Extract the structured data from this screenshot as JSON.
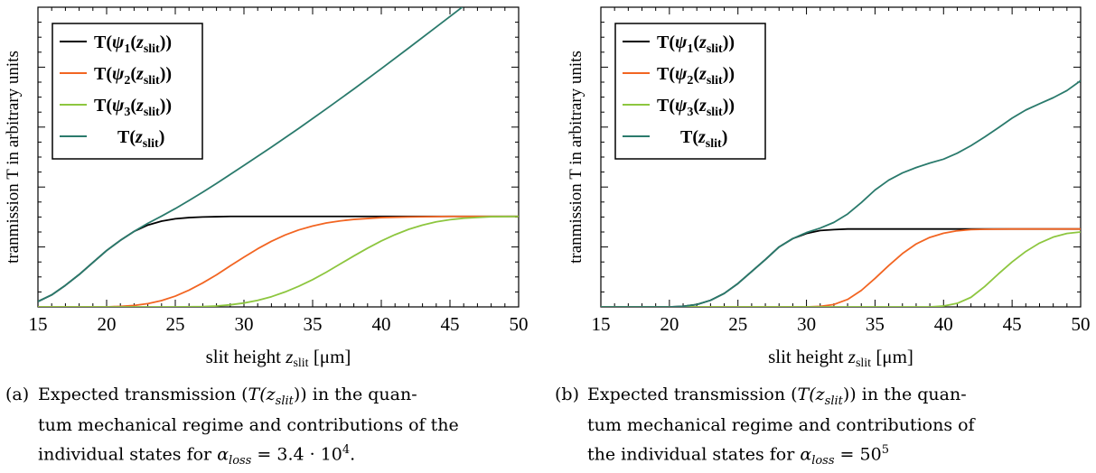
{
  "charts": [
    {
      "label": "(a)",
      "caption_lines": [
        "Expected transmission (T(z",
        "tum mechanical regime and contributions of the",
        "individual states for α"
      ],
      "caption": {
        "line1_prefix": "Expected transmission (",
        "line1_math": "T(z",
        "line1_sub": "slit",
        "line1_suffix": ")) in the quan-",
        "line2": "tum mechanical regime and contributions of the",
        "line3_prefix": "individual states for ",
        "alpha_sym": "α",
        "alpha_sub": "loss",
        "alpha_value": " = 3.4 · 10",
        "alpha_exp": "4",
        "line3_suffix": "."
      }
    },
    {
      "label": "(b)",
      "caption": {
        "line1_prefix": "Expected transmission (",
        "line1_math": "T(z",
        "line1_sub": "slit",
        "line1_suffix": ")) in the quan-",
        "line2": "tum mechanical regime and contributions of",
        "line3_prefix": "the individual states for ",
        "alpha_sym": "α",
        "alpha_sub": "loss",
        "alpha_value": " = 50",
        "alpha_exp": "5",
        "line3_suffix": ""
      }
    }
  ],
  "chart_data": [
    {
      "type": "line",
      "ylabel": "tranmission T in arbitrary units",
      "xlabel_prefix": "slit height ",
      "xlabel_var": "z",
      "xlabel_sub": "slit",
      "xlabel_suffix": " [μm]",
      "xlim": [
        15,
        50
      ],
      "ylim": [
        0,
        1
      ],
      "xticks": [
        15,
        20,
        25,
        30,
        35,
        40,
        45,
        50
      ],
      "legend_position": "top-left",
      "series": [
        {
          "name": "T(ψ1(zslit))",
          "legend_main": "T(",
          "legend_psi": "ψ",
          "legend_idx": "1",
          "legend_var": "(z",
          "legend_sub": "slit",
          "legend_close": "))",
          "color": "#000000",
          "x": [
            15,
            16,
            17,
            18,
            19,
            20,
            21,
            22,
            23,
            24,
            25,
            26,
            27,
            28,
            29,
            30,
            32,
            35,
            40,
            45,
            50
          ],
          "y": [
            0.018,
            0.04,
            0.072,
            0.108,
            0.148,
            0.188,
            0.222,
            0.252,
            0.273,
            0.286,
            0.294,
            0.298,
            0.3,
            0.301,
            0.302,
            0.302,
            0.302,
            0.302,
            0.302,
            0.302,
            0.302
          ]
        },
        {
          "name": "T(ψ2(zslit))",
          "legend_main": "T(",
          "legend_psi": "ψ",
          "legend_idx": "2",
          "legend_var": "(z",
          "legend_sub": "slit",
          "legend_close": "))",
          "color": "#f26522",
          "x": [
            15,
            20,
            21,
            22,
            23,
            24,
            25,
            26,
            27,
            28,
            29,
            30,
            31,
            32,
            33,
            34,
            35,
            36,
            37,
            38,
            40,
            42,
            45,
            50
          ],
          "y": [
            0.0,
            0.0,
            0.002,
            0.005,
            0.011,
            0.021,
            0.036,
            0.056,
            0.08,
            0.107,
            0.137,
            0.166,
            0.194,
            0.219,
            0.24,
            0.257,
            0.27,
            0.28,
            0.287,
            0.292,
            0.298,
            0.3,
            0.302,
            0.302
          ]
        },
        {
          "name": "T(ψ3(zslit))",
          "legend_main": "T(",
          "legend_psi": "ψ",
          "legend_idx": "3",
          "legend_var": "(z",
          "legend_sub": "slit",
          "legend_close": "))",
          "color": "#8dc63f",
          "x": [
            15,
            25,
            27,
            28,
            29,
            30,
            31,
            32,
            33,
            34,
            35,
            36,
            37,
            38,
            39,
            40,
            41,
            42,
            43,
            44,
            45,
            46,
            48,
            50
          ],
          "y": [
            0.0,
            0.0,
            0.001,
            0.003,
            0.007,
            0.013,
            0.022,
            0.034,
            0.05,
            0.069,
            0.091,
            0.116,
            0.143,
            0.17,
            0.196,
            0.22,
            0.241,
            0.259,
            0.273,
            0.284,
            0.291,
            0.296,
            0.301,
            0.302
          ]
        },
        {
          "name": "T(zslit)",
          "legend_main": "T(",
          "legend_psi": "",
          "legend_idx": "",
          "legend_var": "z",
          "legend_sub": "slit",
          "legend_close": ")",
          "color": "#2a7a6c",
          "x": [
            15,
            16,
            17,
            18,
            19,
            20,
            21,
            22,
            23,
            24,
            25,
            26,
            27,
            28,
            29,
            30,
            32,
            34,
            36,
            38,
            40,
            42,
            44,
            46,
            47
          ],
          "y": [
            0.018,
            0.04,
            0.072,
            0.108,
            0.148,
            0.188,
            0.222,
            0.252,
            0.279,
            0.303,
            0.328,
            0.355,
            0.383,
            0.412,
            0.442,
            0.472,
            0.533,
            0.596,
            0.661,
            0.727,
            0.795,
            0.864,
            0.934,
            1.004,
            1.04
          ]
        }
      ]
    },
    {
      "type": "line",
      "ylabel": "tranmission T in arbitrary units",
      "xlabel_prefix": "slit height ",
      "xlabel_var": "z",
      "xlabel_sub": "slit",
      "xlabel_suffix": " [μm]",
      "xlim": [
        15,
        50
      ],
      "ylim": [
        0,
        1
      ],
      "xticks": [
        15,
        20,
        25,
        30,
        35,
        40,
        45,
        50
      ],
      "legend_position": "top-left",
      "series": [
        {
          "name": "T(ψ1(zslit))",
          "legend_main": "T(",
          "legend_psi": "ψ",
          "legend_idx": "1",
          "legend_var": "(z",
          "legend_sub": "slit",
          "legend_close": "))",
          "color": "#000000",
          "x": [
            15,
            20,
            21,
            22,
            23,
            24,
            25,
            26,
            27,
            28,
            29,
            30,
            31,
            32,
            33,
            35,
            40,
            45,
            50
          ],
          "y": [
            0.0,
            0.0,
            0.002,
            0.008,
            0.022,
            0.045,
            0.078,
            0.118,
            0.158,
            0.2,
            0.228,
            0.245,
            0.255,
            0.258,
            0.26,
            0.26,
            0.26,
            0.26,
            0.26
          ]
        },
        {
          "name": "T(ψ2(zslit))",
          "legend_main": "T(",
          "legend_psi": "ψ",
          "legend_idx": "2",
          "legend_var": "(z",
          "legend_sub": "slit",
          "legend_close": "))",
          "color": "#f26522",
          "x": [
            15,
            30,
            31,
            32,
            33,
            34,
            35,
            36,
            37,
            38,
            39,
            40,
            41,
            42,
            43,
            45,
            50
          ],
          "y": [
            0.0,
            0.0,
            0.002,
            0.008,
            0.025,
            0.055,
            0.095,
            0.138,
            0.178,
            0.21,
            0.232,
            0.246,
            0.254,
            0.258,
            0.259,
            0.26,
            0.26
          ]
        },
        {
          "name": "T(ψ3(zslit))",
          "legend_main": "T(",
          "legend_psi": "ψ",
          "legend_idx": "3",
          "legend_var": "(z",
          "legend_sub": "slit",
          "legend_close": "))",
          "color": "#8dc63f",
          "x": [
            15,
            39,
            40,
            41,
            42,
            43,
            44,
            45,
            46,
            47,
            48,
            49,
            50
          ],
          "y": [
            0.0,
            0.0,
            0.003,
            0.012,
            0.032,
            0.068,
            0.11,
            0.15,
            0.185,
            0.213,
            0.233,
            0.245,
            0.25
          ]
        },
        {
          "name": "T(zslit)",
          "legend_main": "T(",
          "legend_psi": "",
          "legend_idx": "",
          "legend_var": "z",
          "legend_sub": "slit",
          "legend_close": ")",
          "color": "#2a7a6c",
          "x": [
            15,
            20,
            21,
            22,
            23,
            24,
            25,
            26,
            27,
            28,
            29,
            30,
            31,
            32,
            33,
            34,
            35,
            36,
            37,
            38,
            39,
            40,
            41,
            42,
            43,
            44,
            45,
            46,
            47,
            48,
            49,
            50
          ],
          "y": [
            0.0,
            0.0,
            0.002,
            0.008,
            0.022,
            0.045,
            0.078,
            0.118,
            0.158,
            0.2,
            0.228,
            0.248,
            0.263,
            0.282,
            0.31,
            0.348,
            0.39,
            0.423,
            0.447,
            0.465,
            0.48,
            0.493,
            0.513,
            0.538,
            0.567,
            0.598,
            0.63,
            0.657,
            0.678,
            0.698,
            0.722,
            0.755
          ]
        }
      ]
    }
  ]
}
